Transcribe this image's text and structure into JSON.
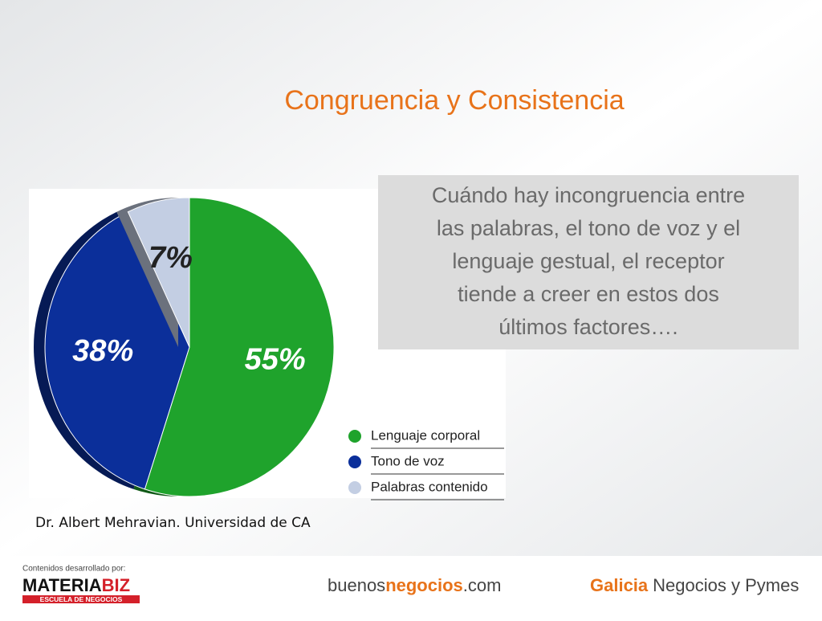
{
  "chart_data": {
    "type": "pie",
    "title": "Congruencia y Consistencia",
    "categories": [
      "Lenguaje corporal",
      "Tono de voz",
      "Palabras contenido"
    ],
    "values": [
      55,
      38,
      7
    ],
    "value_labels": [
      "55%",
      "38%",
      "7%"
    ],
    "colors": [
      "#1fa32c",
      "#0b2f9a",
      "#c3cee3"
    ],
    "legend": "right"
  },
  "callout": {
    "lines": [
      "Cuándo hay incongruencia  entre",
      "las palabras, el tono de voz y el",
      "lenguaje gestual, el receptor",
      "tiende a creer en estos dos",
      "últimos factores…."
    ]
  },
  "source": "Dr. Albert Mehravian. Universidad de CA",
  "footer": {
    "credit": "Contenidos desarrollado por:",
    "logo_a": "MATERIA",
    "logo_b": "BIZ",
    "logo_sub": "ESCUELA DE NEGOCIOS",
    "site_a": "buenos",
    "site_b": "negocios",
    "site_c": ".com",
    "bank_a": "Galicia",
    "bank_b": "Negocios y Pymes"
  }
}
